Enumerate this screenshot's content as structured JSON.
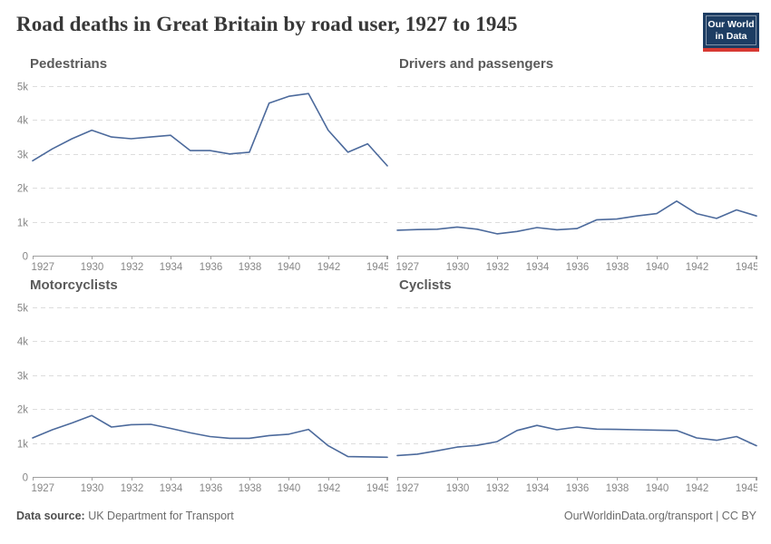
{
  "header": {
    "title": "Road deaths in Great Britain by road user, 1927 to 1945",
    "logo": {
      "line1": "Our World",
      "line2": "in Data"
    }
  },
  "footer": {
    "source_label": "Data source:",
    "source_value": " UK Department for Transport",
    "right_text": "OurWorldinData.org/transport | CC BY"
  },
  "colors": {
    "line": "#4C6A9C",
    "grid": "#dddddd",
    "axis": "#a0a0a0",
    "tick_text": "#878787",
    "logo_bg": "#1d3d63",
    "logo_bar": "#d73a33"
  },
  "axis": {
    "x_ticks": [
      1927,
      1930,
      1932,
      1934,
      1936,
      1938,
      1940,
      1942,
      1945
    ],
    "y_ticks": [
      {
        "v": 0,
        "label": "0"
      },
      {
        "v": 1000,
        "label": "1k"
      },
      {
        "v": 2000,
        "label": "2k"
      },
      {
        "v": 3000,
        "label": "3k"
      },
      {
        "v": 4000,
        "label": "4k"
      },
      {
        "v": 5000,
        "label": "5k"
      }
    ],
    "ylim": [
      0,
      5000
    ],
    "xlim": [
      1927,
      1945
    ],
    "grid": true
  },
  "chart_data": [
    {
      "type": "line",
      "title": "Pedestrians",
      "show_y_labels": true,
      "x": [
        1927,
        1928,
        1929,
        1930,
        1931,
        1932,
        1933,
        1934,
        1935,
        1936,
        1937,
        1938,
        1939,
        1940,
        1941,
        1942,
        1943,
        1944,
        1945
      ],
      "values": [
        2800,
        3150,
        3450,
        3700,
        3500,
        3450,
        3500,
        3550,
        3100,
        3100,
        3000,
        3050,
        4500,
        4700,
        4780,
        3700,
        3050,
        3300,
        2650
      ]
    },
    {
      "type": "line",
      "title": "Drivers and passengers",
      "show_y_labels": false,
      "x": [
        1927,
        1928,
        1929,
        1930,
        1931,
        1932,
        1933,
        1934,
        1935,
        1936,
        1937,
        1938,
        1939,
        1940,
        1941,
        1942,
        1943,
        1944,
        1945
      ],
      "values": [
        750,
        770,
        780,
        845,
        780,
        645,
        715,
        830,
        765,
        800,
        1060,
        1080,
        1170,
        1240,
        1610,
        1240,
        1100,
        1350,
        1170
      ]
    },
    {
      "type": "line",
      "title": "Motorcyclists",
      "show_y_labels": true,
      "x": [
        1927,
        1928,
        1929,
        1930,
        1931,
        1932,
        1933,
        1934,
        1935,
        1936,
        1937,
        1938,
        1939,
        1940,
        1941,
        1942,
        1943,
        1944,
        1945
      ],
      "values": [
        1150,
        1390,
        1590,
        1810,
        1470,
        1540,
        1550,
        1430,
        1300,
        1190,
        1140,
        1140,
        1220,
        1260,
        1400,
        920,
        600,
        590,
        580
      ]
    },
    {
      "type": "line",
      "title": "Cyclists",
      "show_y_labels": false,
      "x": [
        1927,
        1928,
        1929,
        1930,
        1931,
        1932,
        1933,
        1934,
        1935,
        1936,
        1937,
        1938,
        1939,
        1940,
        1941,
        1942,
        1943,
        1944,
        1945
      ],
      "values": [
        630,
        670,
        770,
        880,
        930,
        1040,
        1370,
        1520,
        1390,
        1470,
        1410,
        1400,
        1390,
        1380,
        1370,
        1150,
        1080,
        1190,
        920
      ]
    }
  ]
}
